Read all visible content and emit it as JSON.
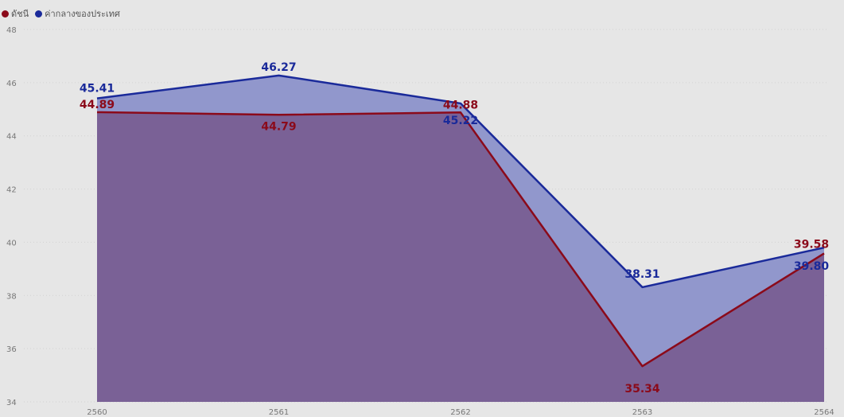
{
  "legend": {
    "items": [
      {
        "label": "ดัชนี",
        "color": "#8b0a1a"
      },
      {
        "label": "ค่ากลางของประเทศ",
        "color": "#1a2a9a"
      }
    ]
  },
  "chart_data": {
    "type": "area",
    "x": [
      "2560",
      "2561",
      "2562",
      "2563",
      "2564"
    ],
    "series": [
      {
        "name": "ดัชนี",
        "values": [
          44.89,
          44.79,
          44.88,
          35.34,
          39.58
        ],
        "labels": [
          "44.89",
          "44.79",
          "44.88",
          "35.34",
          "39.58"
        ],
        "color": "#8b0a1a",
        "fill": "#7a6196"
      },
      {
        "name": "ค่ากลางของประเทศ",
        "values": [
          45.41,
          46.27,
          45.22,
          38.31,
          39.8
        ],
        "labels": [
          "45.41",
          "46.27",
          "45.22",
          "38.31",
          "39.80"
        ],
        "color": "#1a2a9a",
        "fill": "#9197cc"
      }
    ],
    "yticks": [
      "34",
      "36",
      "38",
      "40",
      "42",
      "44",
      "46",
      "48"
    ],
    "ylim": [
      34,
      48
    ],
    "grid": true,
    "legend_position": "top-left",
    "title": "",
    "xlabel": "",
    "ylabel": ""
  }
}
